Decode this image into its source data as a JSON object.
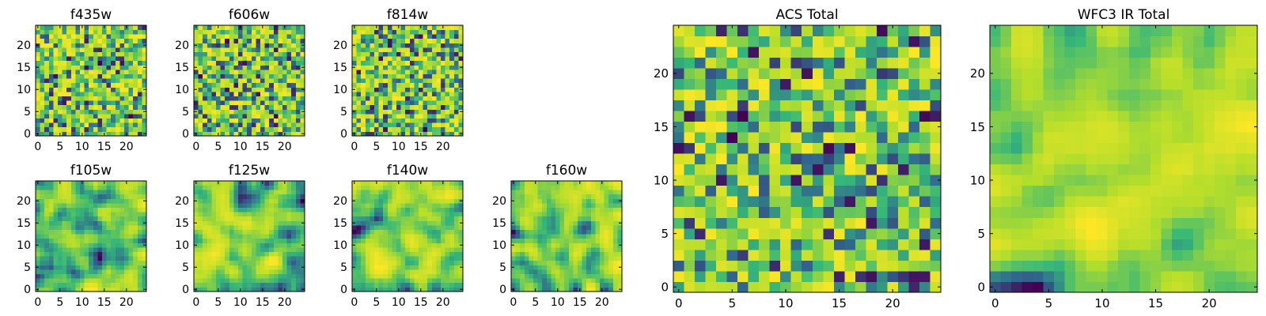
{
  "colormap": [
    "#440154",
    "#31688e",
    "#35b779",
    "#b5de2b",
    "#fde725"
  ],
  "chart_data": [
    {
      "type": "heatmap",
      "title": "f435w",
      "grid_size": [
        25,
        25
      ],
      "seed": 11,
      "smooth": 0,
      "xticks": [
        0,
        5,
        10,
        15,
        20
      ],
      "yticks": [
        0,
        5,
        10,
        15,
        20
      ]
    },
    {
      "type": "heatmap",
      "title": "f606w",
      "grid_size": [
        25,
        25
      ],
      "seed": 23,
      "smooth": 0,
      "xticks": [
        0,
        5,
        10,
        15,
        20
      ],
      "yticks": [
        0,
        5,
        10,
        15,
        20
      ]
    },
    {
      "type": "heatmap",
      "title": "f814w",
      "grid_size": [
        25,
        25
      ],
      "seed": 37,
      "smooth": 0,
      "xticks": [
        0,
        5,
        10,
        15,
        20
      ],
      "yticks": [
        0,
        5,
        10,
        15,
        20
      ]
    },
    {
      "type": "heatmap",
      "title": "f105w",
      "grid_size": [
        25,
        25
      ],
      "seed": 41,
      "smooth": 2,
      "xticks": [
        0,
        5,
        10,
        15,
        20
      ],
      "yticks": [
        0,
        5,
        10,
        15,
        20
      ]
    },
    {
      "type": "heatmap",
      "title": "f125w",
      "grid_size": [
        25,
        25
      ],
      "seed": 53,
      "smooth": 2,
      "xticks": [
        0,
        5,
        10,
        15,
        20
      ],
      "yticks": [
        0,
        5,
        10,
        15,
        20
      ]
    },
    {
      "type": "heatmap",
      "title": "f140w",
      "grid_size": [
        25,
        25
      ],
      "seed": 67,
      "smooth": 2,
      "xticks": [
        0,
        5,
        10,
        15,
        20
      ],
      "yticks": [
        0,
        5,
        10,
        15,
        20
      ]
    },
    {
      "type": "heatmap",
      "title": "f160w",
      "grid_size": [
        25,
        25
      ],
      "seed": 79,
      "smooth": 2,
      "xticks": [
        0,
        5,
        10,
        15,
        20
      ],
      "yticks": [
        0,
        5,
        10,
        15,
        20
      ]
    },
    {
      "type": "heatmap",
      "title": "ACS Total",
      "grid_size": [
        25,
        25
      ],
      "seed": 83,
      "smooth": 0,
      "xticks": [
        0,
        5,
        10,
        15,
        20
      ],
      "yticks": [
        0,
        5,
        10,
        15,
        20
      ]
    },
    {
      "type": "heatmap",
      "title": "WFC3 IR Total",
      "grid_size": [
        25,
        25
      ],
      "seed": 97,
      "smooth": 2,
      "xticks": [
        0,
        5,
        10,
        15,
        20
      ],
      "yticks": [
        0,
        5,
        10,
        15,
        20
      ]
    }
  ]
}
